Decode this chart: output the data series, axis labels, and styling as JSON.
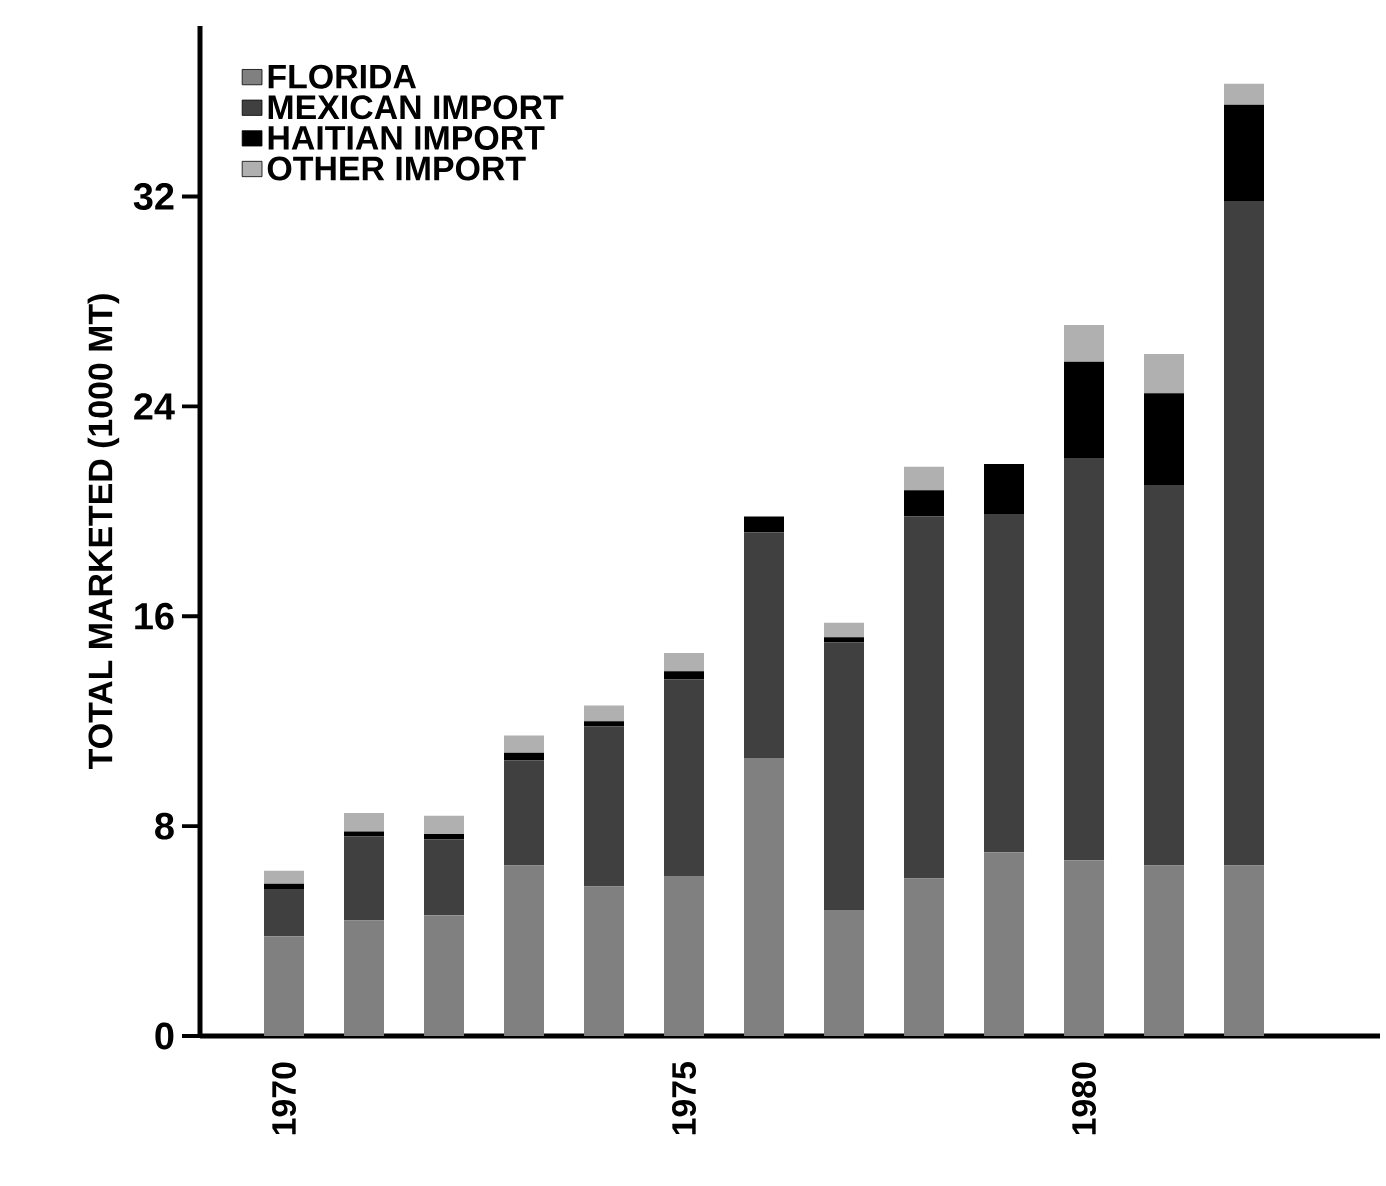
{
  "chart_data": {
    "type": "bar",
    "stacked": true,
    "ylabel": "TOTAL MARKETED (1000 MT)",
    "categories": [
      "1970",
      null,
      null,
      null,
      null,
      "1975",
      null,
      null,
      null,
      null,
      "1980",
      null,
      null
    ],
    "series": [
      {
        "name": "FLORIDA",
        "color": "#808080",
        "values": [
          3.8,
          4.4,
          4.6,
          6.5,
          5.7,
          6.1,
          10.6,
          4.8,
          6.0,
          7.0,
          6.7,
          6.5,
          6.5
        ]
      },
      {
        "name": "MEXICAN IMPORT",
        "color": "#404040",
        "values": [
          1.8,
          3.2,
          2.9,
          4.0,
          6.1,
          7.5,
          8.6,
          10.2,
          13.8,
          12.9,
          15.3,
          14.5,
          25.3
        ]
      },
      {
        "name": "HAITIAN IMPORT",
        "color": "#000000",
        "values": [
          0.2,
          0.2,
          0.2,
          0.3,
          0.2,
          0.3,
          0.6,
          0.2,
          1.0,
          1.9,
          3.7,
          3.5,
          3.7
        ]
      },
      {
        "name": "OTHER IMPORT",
        "color": "#b0b0b0",
        "values": [
          0.5,
          0.7,
          0.7,
          0.65,
          0.6,
          0.7,
          0,
          0.55,
          0.9,
          0,
          1.4,
          1.5,
          0.8
        ]
      }
    ],
    "ylim": [
      0,
      38.5
    ],
    "yticks": [
      0,
      8,
      16,
      24,
      32
    ],
    "legend": "top left"
  }
}
